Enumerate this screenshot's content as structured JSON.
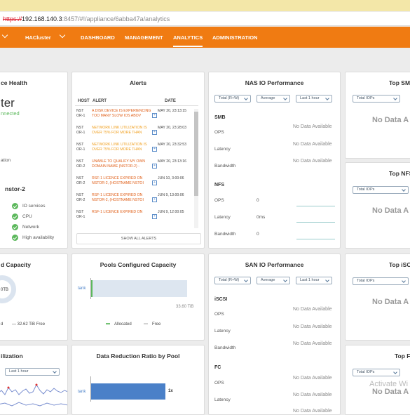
{
  "browser": {
    "url_prefix": "https://",
    "url_host": "192.168.140.3",
    "url_rest": ":8457/#!/appliance/6abba47a/analytics"
  },
  "nav": {
    "cluster": "HACluster",
    "items": [
      "DASHBOARD",
      "MANAGEMENT",
      "ANALYTICS",
      "ADMINISTRATION"
    ],
    "active": "ANALYTICS"
  },
  "health": {
    "title": "ce Health",
    "cluster_name": "ter",
    "status": "nnected",
    "note": "ation",
    "node": "nstor-2",
    "checks": [
      "IO services",
      "CPU",
      "Network",
      "High availability"
    ]
  },
  "alerts": {
    "title": "Alerts",
    "headers": [
      "HOST",
      "ALERT",
      "DATE"
    ],
    "rows": [
      {
        "host": "NST OR-1",
        "msg": "A DISK DEVICE IS EXPERIENCING TOO MANY SLOW IOS ABOV",
        "date": "MAY 20, 23:13:15",
        "level": "error"
      },
      {
        "host": "NST OR-1",
        "msg": "NETWORK LINK UTILIZATION IS OVER 75% FOR MORE THAN",
        "date": "MAY 20, 23:28:03",
        "level": "warn"
      },
      {
        "host": "NST OR-1",
        "msg": "NETWORK LINK UTILIZATION IS OVER 75% FOR MORE THAN",
        "date": "MAY 20, 23:32:53",
        "level": "warn"
      },
      {
        "host": "NST OR-2",
        "msg": "UNABLE TO QUALIFY MY OWN DOMAIN NAME (NSTOR-2) -",
        "date": "MAY 20, 23:13:16",
        "level": "error"
      },
      {
        "host": "NST OR-2",
        "msg": "RSF-1 LICENCE EXPIRED ON NSTOR-2, (HOSTNAME NSTOI",
        "date": "JUN 10, 3:00:06",
        "level": "error"
      },
      {
        "host": "NST OR-2",
        "msg": "RSF-1 LICENCE EXPIRED ON NSTOR-2, (HOSTNAME NSTOI",
        "date": "JUN 9, 13:00:06",
        "level": "error"
      },
      {
        "host": "NST OR-1",
        "msg": "RSF-1 LICENCE EXPIRED ON",
        "date": "JUN 9, 12:00:05",
        "level": "error"
      }
    ],
    "show_all": "SHOW ALL ALERTS"
  },
  "nas": {
    "title": "NAS IO Performance",
    "selects": [
      "Total (R+W)",
      "Average",
      "Last 1 hour"
    ],
    "smb": "SMB",
    "nfs": "NFS",
    "ops": "OPS",
    "latency": "Latency",
    "bandwidth": "Bandwidth",
    "no_data": "No Data Available",
    "nfs_ops_val": "0",
    "nfs_lat_val": "0ms",
    "nfs_bw_val": "0"
  },
  "top_smb": {
    "title": "Top SMB",
    "select": "Total IOPs",
    "no_data": "No Data A"
  },
  "top_nfs": {
    "title": "Top NFS",
    "select": "Total IOPs",
    "no_data": "No Data A"
  },
  "capacity": {
    "title": "d Capacity",
    "center": "0TB",
    "left_label": "d",
    "free": "32.62 TiB Free"
  },
  "pools_capacity": {
    "title": "Pools Configured Capacity",
    "pool": "tank",
    "max": "33.60 TiB",
    "allocated_fraction": 0.02,
    "legend_allocated": "Allocated",
    "legend_free": "Free",
    "allocated_color": "#5cb85c",
    "free_color": "#dde6f0"
  },
  "san": {
    "title": "SAN IO Performance",
    "selects": [
      "Total (R+W)",
      "Average",
      "Last 1 hour"
    ],
    "iscsi": "iSCSI",
    "fc": "FC",
    "ops": "OPS",
    "latency": "Latency",
    "bandwidth": "Bandwidth",
    "no_data": "No Data Available"
  },
  "top_iscsi": {
    "title": "Top iSCSI",
    "select": "Total IOPs",
    "no_data": "No Data A"
  },
  "top_fc": {
    "title": "Top FC",
    "select": "Total IOPs",
    "no_data": "No Data A"
  },
  "utilization": {
    "title": "ilization",
    "select": "Last 1 hour"
  },
  "reduction": {
    "title": "Data Reduction Ratio by Pool",
    "pool": "tank",
    "ratio": "1x",
    "bar_color": "#4a80c8"
  },
  "watermark": "Activate Wi"
}
